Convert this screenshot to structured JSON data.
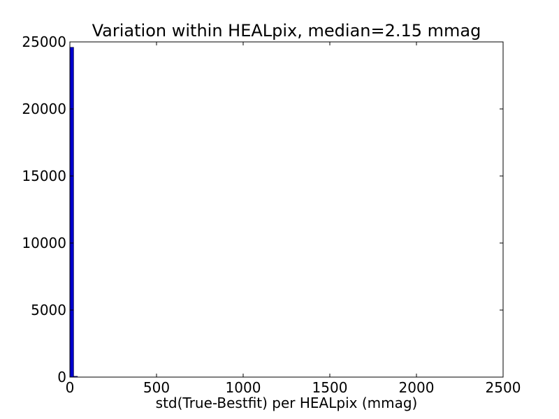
{
  "chart_data": {
    "type": "bar",
    "title": "Variation within HEALpix, median=2.15 mmag",
    "xlabel": "std(True-Bestfit) per HEALpix (mmag)",
    "ylabel": "",
    "xlim": [
      0,
      2500
    ],
    "ylim": [
      0,
      25000
    ],
    "x_ticks": [
      0,
      500,
      1000,
      1500,
      2000,
      2500
    ],
    "y_ticks": [
      0,
      5000,
      10000,
      15000,
      20000,
      25000
    ],
    "grid": false,
    "bar_color": "#0000cc",
    "bins": [
      {
        "x0": 0,
        "x1": 22,
        "value": 24600
      },
      {
        "x0": 22,
        "x1": 44,
        "value": 60
      },
      {
        "x0": 44,
        "x1": 66,
        "value": 10
      },
      {
        "x0": 66,
        "x1": 88,
        "value": 5
      },
      {
        "x0": 88,
        "x1": 110,
        "value": 3
      },
      {
        "x0": 110,
        "x1": 132,
        "value": 2
      },
      {
        "x0": 132,
        "x1": 154,
        "value": 2
      },
      {
        "x0": 154,
        "x1": 176,
        "value": 1
      },
      {
        "x0": 176,
        "x1": 198,
        "value": 1
      }
    ]
  }
}
